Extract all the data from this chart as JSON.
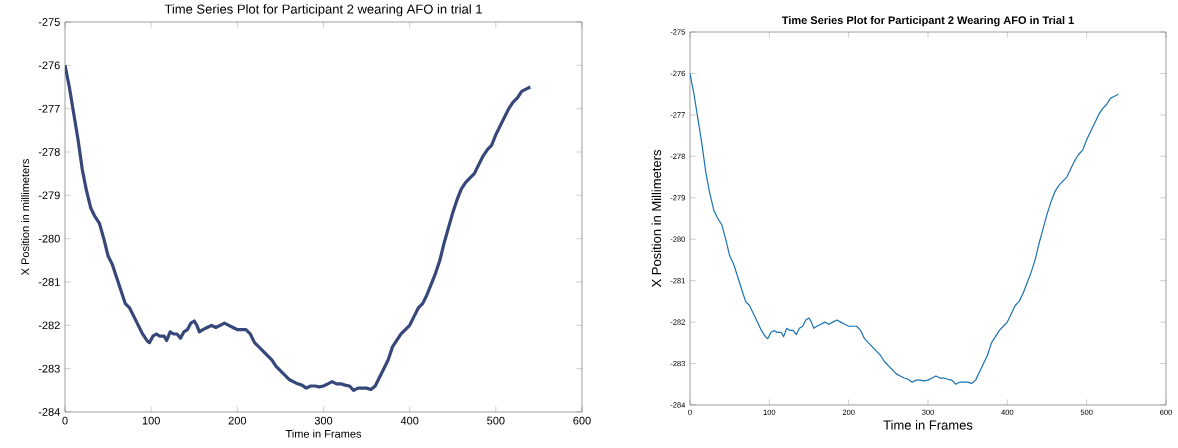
{
  "chart_data": [
    {
      "type": "line",
      "title": "Time Series Plot for Participant 2 wearing AFO in trial 1",
      "xlabel": "Time in Frames",
      "ylabel": "X Position in millimeters",
      "color": "#36477a",
      "x": [
        0,
        5,
        10,
        15,
        20,
        25,
        30,
        35,
        40,
        45,
        50,
        55,
        60,
        65,
        70,
        75,
        80,
        85,
        90,
        95,
        98,
        102,
        106,
        110,
        115,
        118,
        122,
        126,
        130,
        134,
        138,
        142,
        146,
        150,
        153,
        156,
        160,
        165,
        170,
        175,
        180,
        185,
        190,
        195,
        200,
        205,
        210,
        215,
        220,
        225,
        230,
        235,
        240,
        245,
        250,
        255,
        260,
        265,
        270,
        275,
        280,
        285,
        290,
        295,
        300,
        305,
        310,
        315,
        320,
        325,
        330,
        335,
        340,
        345,
        350,
        355,
        360,
        365,
        370,
        375,
        380,
        385,
        390,
        395,
        400,
        405,
        410,
        415,
        420,
        425,
        430,
        435,
        440,
        445,
        450,
        455,
        460,
        465,
        470,
        475,
        480,
        485,
        490,
        495,
        500,
        505,
        510,
        515,
        520,
        525,
        530,
        535,
        540
      ],
      "values": [
        -276,
        -276.5,
        -277.1,
        -277.7,
        -278.4,
        -278.9,
        -279.3,
        -279.5,
        -279.65,
        -280,
        -280.4,
        -280.6,
        -280.9,
        -281.2,
        -281.5,
        -281.6,
        -281.8,
        -282.0,
        -282.2,
        -282.35,
        -282.4,
        -282.25,
        -282.2,
        -282.25,
        -282.25,
        -282.35,
        -282.15,
        -282.2,
        -282.2,
        -282.3,
        -282.15,
        -282.1,
        -281.95,
        -281.9,
        -282.0,
        -282.15,
        -282.1,
        -282.05,
        -282.0,
        -282.05,
        -282.0,
        -281.95,
        -282.0,
        -282.05,
        -282.1,
        -282.1,
        -282.1,
        -282.2,
        -282.4,
        -282.5,
        -282.6,
        -282.7,
        -282.8,
        -282.95,
        -283.05,
        -283.15,
        -283.25,
        -283.3,
        -283.35,
        -283.38,
        -283.45,
        -283.4,
        -283.4,
        -283.42,
        -283.4,
        -283.35,
        -283.3,
        -283.35,
        -283.35,
        -283.38,
        -283.4,
        -283.5,
        -283.45,
        -283.45,
        -283.45,
        -283.48,
        -283.4,
        -283.2,
        -283.0,
        -282.8,
        -282.5,
        -282.35,
        -282.2,
        -282.1,
        -282.0,
        -281.8,
        -281.6,
        -281.5,
        -281.3,
        -281.05,
        -280.8,
        -280.5,
        -280.1,
        -279.75,
        -279.4,
        -279.1,
        -278.85,
        -278.7,
        -278.6,
        -278.5,
        -278.3,
        -278.1,
        -277.95,
        -277.85,
        -277.6,
        -277.4,
        -277.2,
        -277.0,
        -276.85,
        -276.75,
        -276.6,
        -276.55,
        -276.5
      ],
      "xlim": [
        0,
        600
      ],
      "ylim": [
        -284,
        -275
      ],
      "xticks": [
        0,
        100,
        200,
        300,
        400,
        500,
        600
      ],
      "yticks": [
        -284,
        -283,
        -282,
        -281,
        -280,
        -279,
        -278,
        -277,
        -276,
        -275
      ]
    },
    {
      "type": "line",
      "title": "**Time Series Plot for Participant 2 Wearing AFO in Trial 1**",
      "xlabel": "Time in Frames",
      "ylabel": "X Position in Millimeters",
      "color": "#1a72b0",
      "x": [
        0,
        5,
        10,
        15,
        20,
        25,
        30,
        35,
        40,
        45,
        50,
        55,
        60,
        65,
        70,
        75,
        80,
        85,
        90,
        95,
        98,
        102,
        106,
        110,
        115,
        118,
        122,
        126,
        130,
        134,
        138,
        142,
        146,
        150,
        153,
        156,
        160,
        165,
        170,
        175,
        180,
        185,
        190,
        195,
        200,
        205,
        210,
        215,
        220,
        225,
        230,
        235,
        240,
        245,
        250,
        255,
        260,
        265,
        270,
        275,
        280,
        285,
        290,
        295,
        300,
        305,
        310,
        315,
        320,
        325,
        330,
        335,
        340,
        345,
        350,
        355,
        360,
        365,
        370,
        375,
        380,
        385,
        390,
        395,
        400,
        405,
        410,
        415,
        420,
        425,
        430,
        435,
        440,
        445,
        450,
        455,
        460,
        465,
        470,
        475,
        480,
        485,
        490,
        495,
        500,
        505,
        510,
        515,
        520,
        525,
        530,
        535,
        540
      ],
      "values": [
        -276,
        -276.5,
        -277.1,
        -277.7,
        -278.4,
        -278.9,
        -279.3,
        -279.5,
        -279.65,
        -280,
        -280.4,
        -280.6,
        -280.9,
        -281.2,
        -281.5,
        -281.6,
        -281.8,
        -282.0,
        -282.2,
        -282.35,
        -282.4,
        -282.25,
        -282.2,
        -282.25,
        -282.25,
        -282.35,
        -282.15,
        -282.2,
        -282.2,
        -282.3,
        -282.15,
        -282.1,
        -281.95,
        -281.9,
        -282.0,
        -282.15,
        -282.1,
        -282.05,
        -282.0,
        -282.05,
        -282.0,
        -281.95,
        -282.0,
        -282.05,
        -282.1,
        -282.1,
        -282.1,
        -282.2,
        -282.4,
        -282.5,
        -282.6,
        -282.7,
        -282.8,
        -282.95,
        -283.05,
        -283.15,
        -283.25,
        -283.3,
        -283.35,
        -283.38,
        -283.45,
        -283.4,
        -283.4,
        -283.42,
        -283.4,
        -283.35,
        -283.3,
        -283.35,
        -283.35,
        -283.38,
        -283.4,
        -283.5,
        -283.45,
        -283.45,
        -283.45,
        -283.48,
        -283.4,
        -283.2,
        -283.0,
        -282.8,
        -282.5,
        -282.35,
        -282.2,
        -282.1,
        -282.0,
        -281.8,
        -281.6,
        -281.5,
        -281.3,
        -281.05,
        -280.8,
        -280.5,
        -280.1,
        -279.75,
        -279.4,
        -279.1,
        -278.85,
        -278.7,
        -278.6,
        -278.5,
        -278.3,
        -278.1,
        -277.95,
        -277.85,
        -277.6,
        -277.4,
        -277.2,
        -277.0,
        -276.85,
        -276.75,
        -276.6,
        -276.55,
        -276.5
      ],
      "xlim": [
        0,
        600
      ],
      "ylim": [
        -284,
        -275
      ],
      "xticks": [
        0,
        100,
        200,
        300,
        400,
        500,
        600
      ],
      "yticks": [
        -284,
        -283,
        -282,
        -281,
        -280,
        -279,
        -278,
        -277,
        -276,
        -275
      ]
    }
  ]
}
